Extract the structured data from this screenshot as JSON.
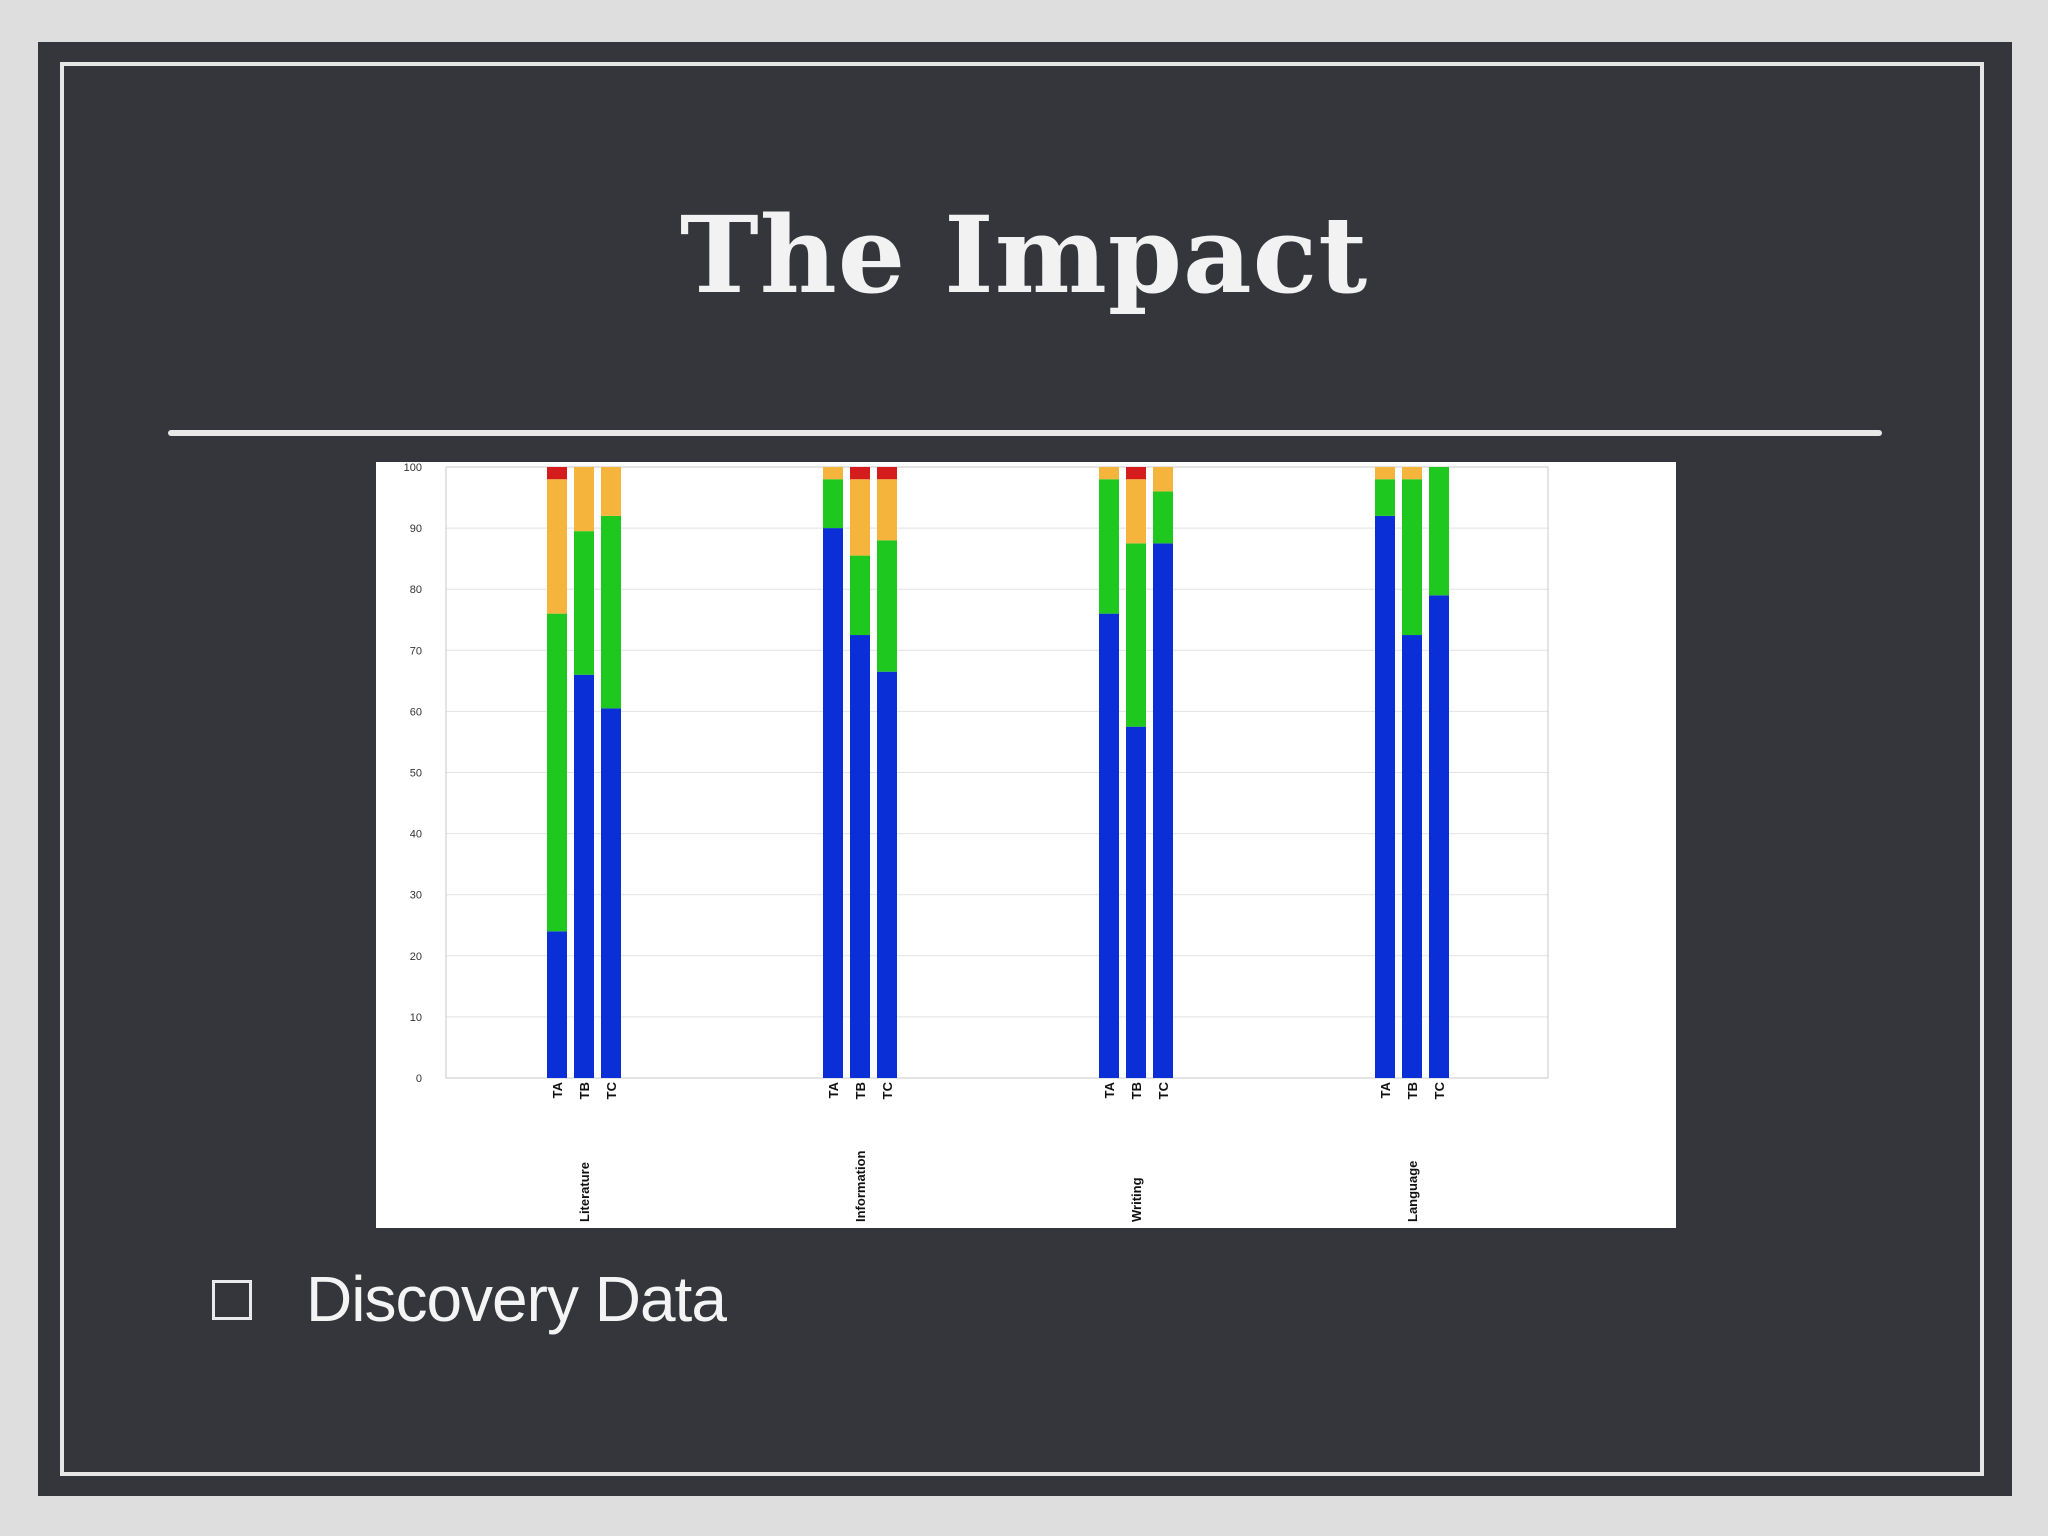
{
  "slide": {
    "title": "The Impact",
    "bullet": "Discovery Data"
  },
  "colors": {
    "background": "#34363b",
    "text": "#f2f2f2",
    "series": {
      "blue": "#0a2fd6",
      "green": "#1fc81f",
      "orange": "#f5b43c",
      "red": "#d41c1c"
    }
  },
  "chart_data": {
    "type": "bar",
    "stacked": true,
    "ylim": [
      0,
      100
    ],
    "yticks": [
      0,
      10,
      20,
      30,
      40,
      50,
      60,
      70,
      80,
      90,
      100
    ],
    "grid": true,
    "groups": [
      {
        "label": "Literature",
        "bars": [
          {
            "label": "TA",
            "values": [
              24,
              52,
              22,
              2
            ]
          },
          {
            "label": "TB",
            "values": [
              66,
              23.5,
              10.5,
              0
            ]
          },
          {
            "label": "TC",
            "values": [
              60.5,
              31.5,
              8,
              0
            ]
          }
        ]
      },
      {
        "label": "Information",
        "bars": [
          {
            "label": "TA",
            "values": [
              90,
              8,
              2,
              0
            ]
          },
          {
            "label": "TB",
            "values": [
              72.5,
              13,
              12.5,
              2
            ]
          },
          {
            "label": "TC",
            "values": [
              66.5,
              21.5,
              10,
              2
            ]
          }
        ]
      },
      {
        "label": "Writing",
        "bars": [
          {
            "label": "TA",
            "values": [
              76,
              22,
              2,
              0
            ]
          },
          {
            "label": "TB",
            "values": [
              57.5,
              30,
              10.5,
              2
            ]
          },
          {
            "label": "TC",
            "values": [
              87.5,
              8.5,
              4,
              0
            ]
          }
        ]
      },
      {
        "label": "Language",
        "bars": [
          {
            "label": "TA",
            "values": [
              92,
              6,
              2,
              0
            ]
          },
          {
            "label": "TB",
            "values": [
              72.5,
              25.5,
              2,
              0
            ]
          },
          {
            "label": "TC",
            "values": [
              79,
              21,
              0,
              0
            ]
          }
        ]
      }
    ]
  }
}
